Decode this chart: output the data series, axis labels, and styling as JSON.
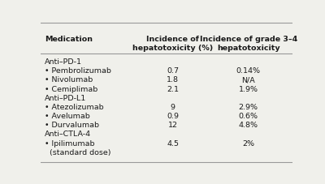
{
  "headers": [
    "Medication",
    "Incidence of\nhepatotoxicity (%)",
    "Incidence of grade 3–4\nhepatotoxicity"
  ],
  "rows": [
    {
      "type": "group",
      "label": "Anti–PD-1",
      "col2": "",
      "col3": ""
    },
    {
      "type": "drug",
      "label": "• Pembrolizumab",
      "col2": "0.7",
      "col3": "0.14%"
    },
    {
      "type": "drug",
      "label": "• Nivolumab",
      "col2": "1.8",
      "col3": "N/A"
    },
    {
      "type": "drug",
      "label": "• Cemiplimab",
      "col2": "2.1",
      "col3": "1.9%"
    },
    {
      "type": "group",
      "label": "Anti–PD-L1",
      "col2": "",
      "col3": ""
    },
    {
      "type": "drug",
      "label": "• Atezolizumab",
      "col2": "9",
      "col3": "2.9%"
    },
    {
      "type": "drug",
      "label": "• Avelumab",
      "col2": "0.9",
      "col3": "0.6%"
    },
    {
      "type": "drug",
      "label": "• Durvalumab",
      "col2": "12",
      "col3": "4.8%"
    },
    {
      "type": "group",
      "label": "Anti–CTLA-4",
      "col2": "",
      "col3": ""
    },
    {
      "type": "drug2",
      "label": "• Ipilimumab",
      "col2": "4.5",
      "col3": "2%"
    },
    {
      "type": "sub",
      "label": "  (standard dose)",
      "col2": "",
      "col3": ""
    }
  ],
  "bg_color": "#f0f0eb",
  "header_line_color": "#999999",
  "text_color": "#1a1a1a",
  "header_fontsize": 6.8,
  "row_fontsize": 6.8
}
